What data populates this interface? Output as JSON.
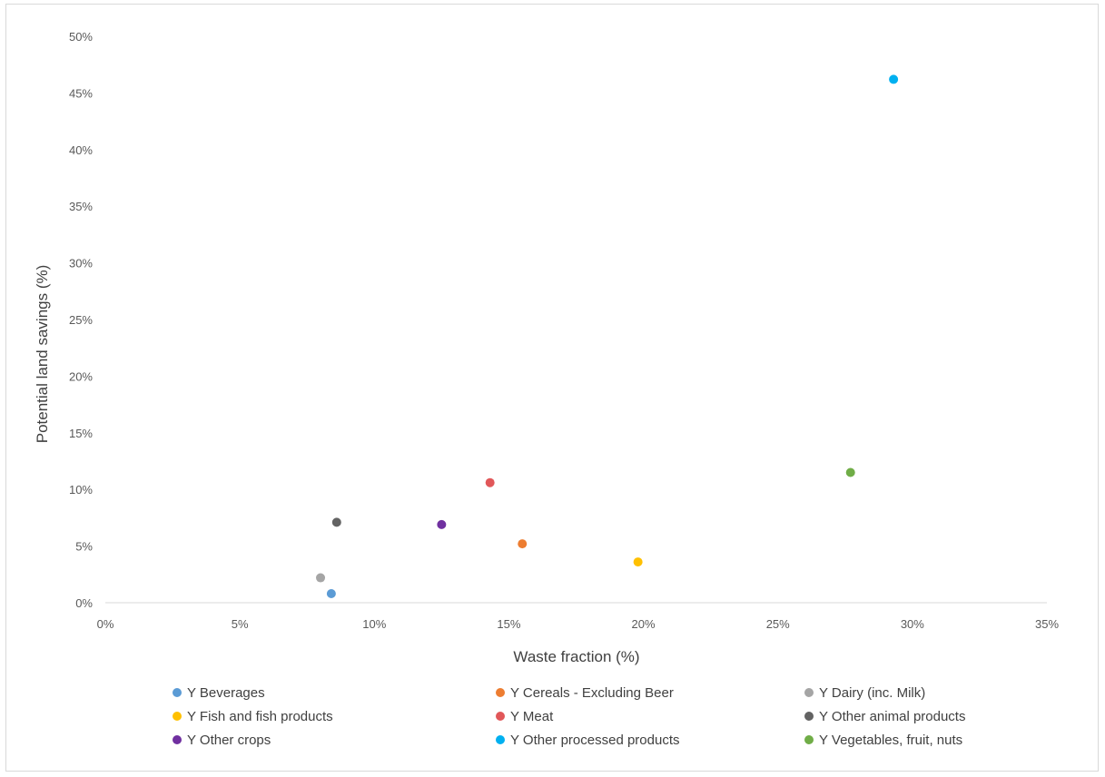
{
  "chart_data": {
    "type": "scatter",
    "title": "",
    "xlabel": "Waste fraction (%)",
    "ylabel": "Potential land savings (%)",
    "xlim": [
      0,
      35
    ],
    "ylim": [
      0,
      50
    ],
    "x_ticks": [
      "0%",
      "5%",
      "10%",
      "15%",
      "20%",
      "25%",
      "30%",
      "35%"
    ],
    "y_ticks": [
      "0%",
      "5%",
      "10%",
      "15%",
      "20%",
      "25%",
      "30%",
      "35%",
      "40%",
      "45%",
      "50%"
    ],
    "grid": false,
    "legend_position": "bottom",
    "series": [
      {
        "name": "Y Beverages",
        "color": "#5b9bd5",
        "x": [
          8.4
        ],
        "y": [
          0.8
        ]
      },
      {
        "name": "Y Cereals - Excluding Beer",
        "color": "#ed7d31",
        "x": [
          15.5
        ],
        "y": [
          5.2
        ]
      },
      {
        "name": "Y Dairy (inc. Milk)",
        "color": "#a5a5a5",
        "x": [
          8.0
        ],
        "y": [
          2.2
        ]
      },
      {
        "name": "Y Fish and fish products",
        "color": "#ffc000",
        "x": [
          19.8
        ],
        "y": [
          3.6
        ]
      },
      {
        "name": "Y Meat",
        "color": "#e15759",
        "x": [
          14.3
        ],
        "y": [
          10.6
        ]
      },
      {
        "name": "Y Other animal products",
        "color": "#636363",
        "x": [
          8.6
        ],
        "y": [
          7.1
        ]
      },
      {
        "name": "Y Other crops",
        "color": "#7030a0",
        "x": [
          12.5
        ],
        "y": [
          6.9
        ]
      },
      {
        "name": "Y Other processed products",
        "color": "#00b0f0",
        "x": [
          29.3
        ],
        "y": [
          46.2
        ]
      },
      {
        "name": "Y Vegetables, fruit, nuts",
        "color": "#70ad47",
        "x": [
          27.7
        ],
        "y": [
          11.5
        ]
      }
    ]
  }
}
